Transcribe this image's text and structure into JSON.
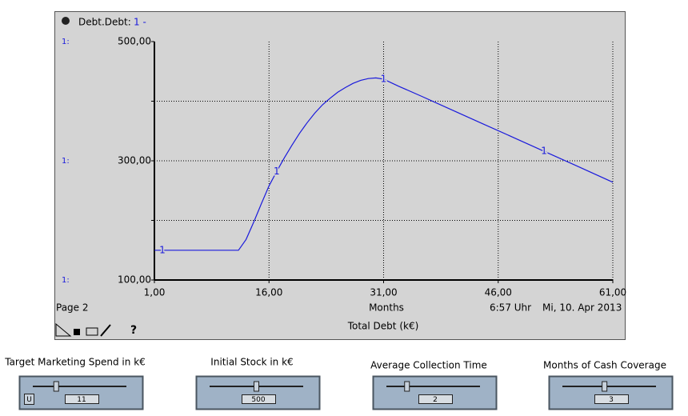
{
  "chart_data": {
    "type": "line",
    "legend_marker": "1 -",
    "axis_marker": "1:",
    "line_marker": "1",
    "x": [
      1,
      5,
      9,
      12,
      13,
      14,
      15,
      16,
      17,
      18,
      19,
      20,
      21,
      22,
      23,
      24,
      25,
      26,
      27,
      28,
      29,
      30,
      31,
      33,
      36,
      40,
      44,
      48,
      52,
      56,
      61
    ],
    "series": [
      {
        "name": "Debt.Debt:",
        "color": "#1a1adc",
        "values": [
          150,
          150,
          150,
          150,
          168,
          197,
          228,
          258,
          282,
          305,
          326,
          346,
          364,
          380,
          394,
          405,
          415,
          423,
          430,
          435,
          438,
          439,
          437,
          425,
          408,
          385,
          362,
          339,
          316,
          293,
          264
        ]
      }
    ],
    "xlim": [
      1,
      61
    ],
    "xticks": [
      {
        "value": 1,
        "label": "1,00"
      },
      {
        "value": 16,
        "label": "16,00"
      },
      {
        "value": 31,
        "label": "31,00"
      },
      {
        "value": 46,
        "label": "46,00"
      },
      {
        "value": 61,
        "label": "61,00"
      }
    ],
    "ylim": [
      100,
      500
    ],
    "yticks": [
      {
        "value": 100,
        "label": "100,00"
      },
      {
        "value": 200,
        "label": null
      },
      {
        "value": 300,
        "label": "300,00"
      },
      {
        "value": 400,
        "label": null
      },
      {
        "value": 500,
        "label": "500,00"
      }
    ],
    "xlabel": "Months",
    "ylabel": "Total Debt (k€)",
    "grid": true
  },
  "footer": {
    "page": "Page 2",
    "time": "6:57 Uhr",
    "date": "Mi, 10. Apr 2013",
    "help": "?"
  },
  "sliders": [
    {
      "label": "Target Marketing Spend in k€",
      "value": "11",
      "button": "U"
    },
    {
      "label": "Initial Stock in k€",
      "value": "500"
    },
    {
      "label": "Average Collection Time",
      "value": "2"
    },
    {
      "label": "Months of Cash Coverage",
      "value": "3"
    }
  ]
}
